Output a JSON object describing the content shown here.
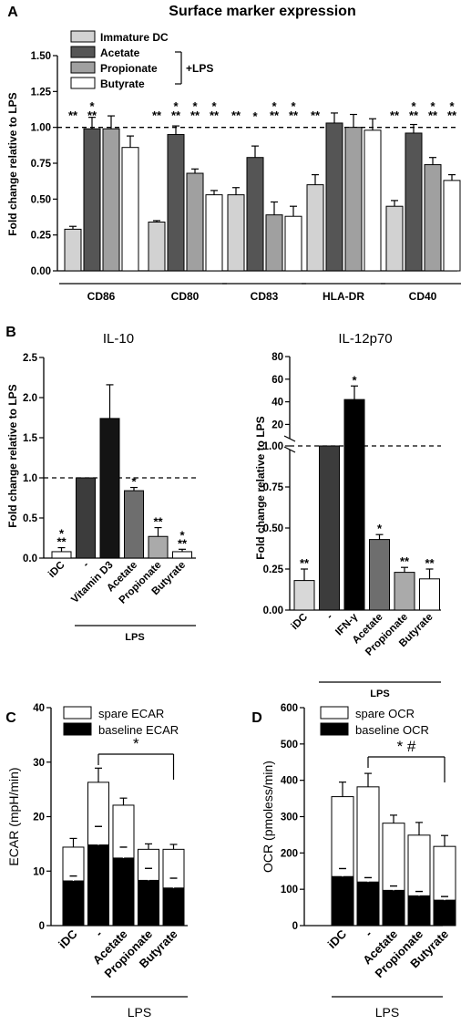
{
  "chart_data": [
    {
      "panel": "A",
      "type": "bar",
      "title": "Surface marker expression",
      "ylabel": "Fold change relative to LPS",
      "ylim": [
        0,
        1.5
      ],
      "yticks": [
        "0.00",
        "0.25",
        "0.50",
        "0.75",
        "1.00",
        "1.25",
        "1.50"
      ],
      "reference_line": 1.0,
      "categories": [
        "CD86",
        "CD80",
        "CD83",
        "HLA-DR",
        "CD40"
      ],
      "legend_position": "top-left",
      "legend_group_label": "+LPS",
      "series": [
        {
          "name": "Immature DC",
          "color": "#d2d2d2",
          "values": [
            0.29,
            0.34,
            0.53,
            0.6,
            0.45
          ],
          "errors": [
            0.02,
            0.01,
            0.05,
            0.07,
            0.04
          ],
          "sig": [
            "**",
            "**",
            "**",
            "**",
            "**"
          ]
        },
        {
          "name": "Acetate",
          "color": "#555555",
          "values": [
            0.99,
            0.95,
            0.79,
            1.03,
            0.96
          ],
          "errors": [
            0.08,
            0.06,
            0.08,
            0.07,
            0.06
          ],
          "sig": [
            "**",
            "**",
            "*",
            "",
            "**"
          ]
        },
        {
          "name": "Propionate",
          "color": "#a0a0a0",
          "values": [
            0.99,
            0.68,
            0.39,
            1.0,
            0.74
          ],
          "errors": [
            0.09,
            0.03,
            0.09,
            0.09,
            0.05
          ],
          "sig": [
            "",
            "**",
            "**",
            "",
            "**"
          ]
        },
        {
          "name": "Butyrate",
          "color": "#ffffff",
          "values": [
            0.86,
            0.53,
            0.38,
            0.98,
            0.63
          ],
          "errors": [
            0.08,
            0.03,
            0.07,
            0.08,
            0.04
          ],
          "sig": [
            "",
            "**",
            "**",
            "",
            "**"
          ]
        }
      ]
    },
    {
      "panel": "B",
      "type": "bar",
      "title": "IL-10",
      "ylabel": "Fold change relative to LPS",
      "ylim": [
        0,
        2.5
      ],
      "yticks": [
        "0.0",
        "0.5",
        "1.0",
        "1.5",
        "2.0",
        "2.5"
      ],
      "reference_line": 1.0,
      "group_label": "LPS",
      "categories": [
        "iDC",
        "-",
        "Vitamin D3",
        "Acetate",
        "Propionate",
        "Butyrate"
      ],
      "colors": [
        "#ffffff",
        "#3c3c3c",
        "#141414",
        "#6e6e6e",
        "#aaaaaa",
        "#ffffff"
      ],
      "values": [
        0.08,
        1.0,
        1.74,
        0.84,
        0.27,
        0.08
      ],
      "errors": [
        0.05,
        0.0,
        0.42,
        0.04,
        0.11,
        0.03
      ],
      "sig": [
        "*\n**",
        "",
        "",
        "*",
        "**",
        "*\n**"
      ]
    },
    {
      "panel": "B",
      "type": "bar",
      "title": "IL-12p70",
      "ylabel": "Fold change relative to LPS",
      "broken_axis": true,
      "ylim_lower": [
        0,
        1.0
      ],
      "ylim_upper": [
        1.0,
        80
      ],
      "yticks_lower": [
        "0.00",
        "0.25",
        "0.50",
        "0.75",
        "1.00"
      ],
      "yticks_upper": [
        "20",
        "40",
        "60",
        "80"
      ],
      "reference_line": 1.0,
      "group_label": "LPS",
      "categories": [
        "iDC",
        "-",
        "IFN-γ",
        "Acetate",
        "Propionate",
        "Butyrate"
      ],
      "colors": [
        "#d8d8d8",
        "#3c3c3c",
        "#000000",
        "#6e6e6e",
        "#aaaaaa",
        "#ffffff"
      ],
      "values": [
        0.18,
        1.0,
        42,
        0.43,
        0.23,
        0.19
      ],
      "errors": [
        0.07,
        0.0,
        12,
        0.03,
        0.03,
        0.06
      ],
      "sig": [
        "**",
        "",
        "*",
        "*",
        "**",
        "**"
      ]
    },
    {
      "panel": "C",
      "type": "bar",
      "stacked": true,
      "ylabel": "ECAR (mpH/min)",
      "ylim": [
        0,
        40
      ],
      "yticks": [
        "0",
        "10",
        "20",
        "30",
        "40"
      ],
      "group_label": "LPS",
      "categories": [
        "iDC",
        "-",
        "Acetate",
        "Propionate",
        "Butyrate"
      ],
      "series": [
        {
          "name": "baseline ECAR",
          "color": "#000000",
          "values": [
            8.2,
            14.8,
            12.4,
            8.3,
            6.9
          ],
          "errors": [
            0.9,
            3.4,
            2.0,
            2.2,
            1.8
          ]
        },
        {
          "name": "spare ECAR",
          "color": "#ffffff",
          "values": [
            6.2,
            11.5,
            9.7,
            5.7,
            7.1
          ],
          "errors": [
            1.6,
            2.6,
            1.3,
            1.0,
            0.9
          ]
        }
      ],
      "totals": [
        14.4,
        26.3,
        22.1,
        14.0,
        14.0
      ],
      "bracket": {
        "from": "-",
        "to": "Butyrate",
        "label": "*"
      }
    },
    {
      "panel": "D",
      "type": "bar",
      "stacked": true,
      "ylabel": "OCR (pmoless/min)",
      "ylim": [
        0,
        600
      ],
      "yticks": [
        "0",
        "100",
        "200",
        "300",
        "400",
        "500",
        "600"
      ],
      "group_label": "LPS",
      "categories": [
        "iDC",
        "-",
        "Acetate",
        "Propionate",
        "Butyrate"
      ],
      "series": [
        {
          "name": "baseline OCR",
          "color": "#000000",
          "values": [
            135,
            120,
            97,
            82,
            70
          ],
          "errors": [
            22,
            12,
            12,
            12,
            10
          ]
        },
        {
          "name": "spare OCR",
          "color": "#ffffff",
          "values": [
            220,
            262,
            185,
            167,
            148
          ],
          "errors": [
            40,
            37,
            22,
            35,
            30
          ]
        }
      ],
      "totals": [
        355,
        382,
        282,
        249,
        218
      ],
      "bracket": {
        "from": "-",
        "to": "Butyrate",
        "label": "* #"
      }
    }
  ],
  "panel_labels": [
    "A",
    "B",
    "C",
    "D"
  ]
}
